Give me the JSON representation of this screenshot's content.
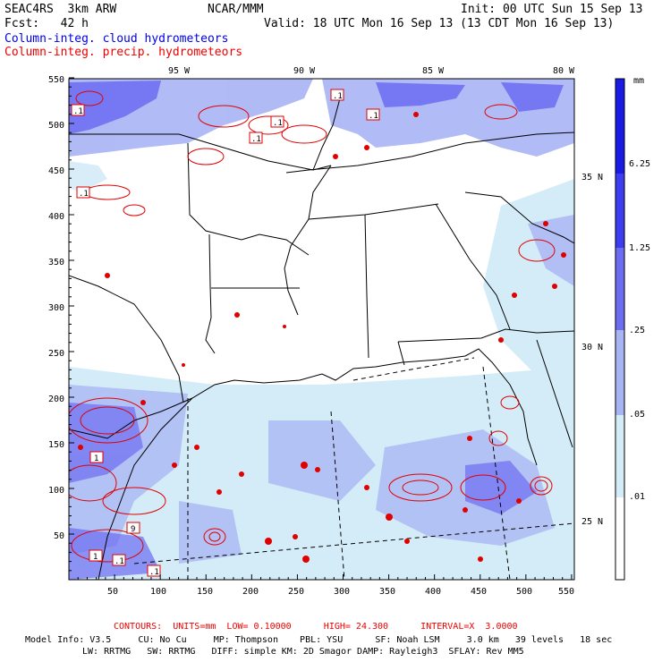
{
  "header": {
    "model": "SEAC4RS  3km ARW",
    "org": "NCAR/MMM",
    "init": "Init: 00 UTC Sun 15 Sep 13",
    "fcst": "Fcst:   42 h",
    "valid": "Valid: 18 UTC Mon 16 Sep 13 (13 CDT Mon 16 Sep 13)",
    "field1": "Column-integ. cloud hydrometeors",
    "field2": "Column-integ. precip. hydrometeors"
  },
  "axes": {
    "x_ticks": [
      "50",
      "100",
      "150",
      "200",
      "250",
      "300",
      "350",
      "400",
      "450",
      "500",
      "550"
    ],
    "y_ticks": [
      "50",
      "100",
      "150",
      "200",
      "250",
      "300",
      "350",
      "400",
      "450",
      "500",
      "550"
    ],
    "lon_labels": [
      "95 W",
      "90 W",
      "85 W",
      "80 W"
    ],
    "lat_labels": [
      "35 N",
      "30 N",
      "25 N"
    ]
  },
  "colorbar": {
    "unit": "mm",
    "labels": [
      "6.25",
      "1.25",
      ".25",
      ".05",
      ".01"
    ],
    "colors": [
      "#1a1ae6",
      "#3c3cf0",
      "#6c6cf2",
      "#a8b4f4",
      "#d4ecf8",
      "#ffffff"
    ]
  },
  "footer": {
    "contours": "CONTOURS:  UNITS=mm  LOW= 0.10000      HIGH= 24.300      INTERVAL=X  3.0000",
    "line1": "Model Info: V3.5     CU: No Cu     MP: Thompson    PBL: YSU      SF: Noah LSM     3.0 km   39 levels   18 sec",
    "line2": "LW: RRTMG   SW: RRTMG   DIFF: simple KM: 2D Smagor DAMP: Rayleigh3  SFLAY: Rev MM5"
  },
  "contour_labels": [
    ".1",
    ".1",
    ".1",
    ".1",
    ".1",
    ".1",
    "1",
    "9",
    "1",
    ".1",
    ".1"
  ]
}
